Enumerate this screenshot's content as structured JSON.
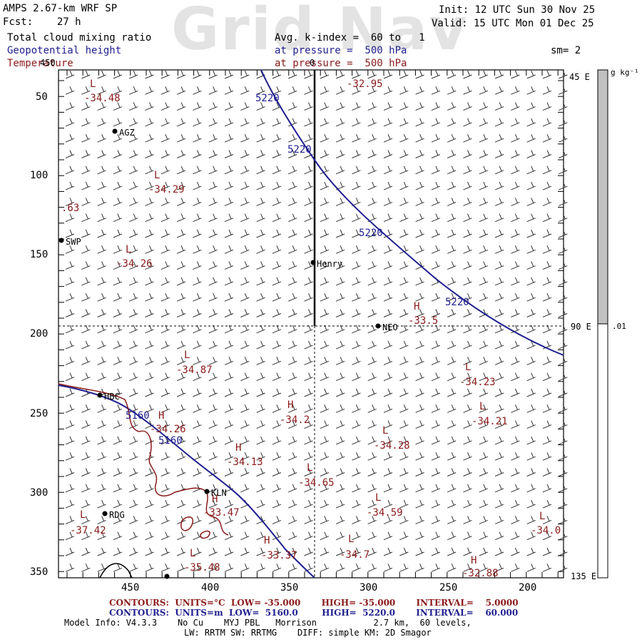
{
  "header": {
    "title": "AMPS 2.67-km WRF SP",
    "fcst": "Fcst:    27 h",
    "init": "Init: 12 UTC Sun 30 Nov 25",
    "valid": "Valid: 15 UTC Mon 01 Dec 25",
    "watermark": "Grid Nav",
    "field1": "Total cloud mixing ratio",
    "field2": "Geopotential height",
    "field3": "Temperature",
    "avg_line": "Avg. k-index =  60 to   1",
    "pressure1": "at pressure =  500 hPa",
    "pressure2": "at pressure =  500 hPa",
    "sm": "sm= 2",
    "axis_top_label": "450"
  },
  "colors": {
    "height_contour": "#1f1f8f",
    "temperature": "#8b1a1a",
    "coast": "#8b1a1a",
    "colorbar_fill": "#c0c0c0"
  },
  "axes": {
    "y_ticks": [
      "50",
      "100",
      "150",
      "200",
      "250",
      "300",
      "350"
    ],
    "x_ticks": [
      "450",
      "400",
      "350",
      "300",
      "250",
      "200"
    ],
    "top_center": "0"
  },
  "colorbar": {
    "unit": "g kg⁻¹",
    "top_label": "45 E",
    "mid_label": "90 E",
    "bottom_label": "135 E",
    "value_label": ".01",
    "fill_fraction": 0.5
  },
  "stations": [
    {
      "name": "AGZ"
    },
    {
      "name": "SWP"
    },
    {
      "name": "Henry"
    },
    {
      "name": "NEO"
    },
    {
      "name": "HBC"
    },
    {
      "name": "KLN"
    },
    {
      "name": "RDG"
    }
  ],
  "temp_labels": [
    {
      "mark": "L",
      "value": "-34.48"
    },
    {
      "mark": "L",
      "value": "-34.29"
    },
    {
      "mark": "",
      "value": ".63"
    },
    {
      "mark": "L",
      "value": "-34.26"
    },
    {
      "mark": "",
      "value": "-32.95"
    },
    {
      "mark": "H",
      "value": "-33.5"
    },
    {
      "mark": "L",
      "value": "-34.87"
    },
    {
      "mark": "L",
      "value": "-34.23"
    },
    {
      "mark": "L",
      "value": "-34.21"
    },
    {
      "mark": "H",
      "value": "-34.2"
    },
    {
      "mark": "L",
      "value": "-34.28"
    },
    {
      "mark": "H",
      "value": "-34.26"
    },
    {
      "mark": "H",
      "value": "-34.13"
    },
    {
      "mark": "L",
      "value": "-34.65"
    },
    {
      "mark": "H",
      "value": "-33.47"
    },
    {
      "mark": "L",
      "value": "-34.59"
    },
    {
      "mark": "L",
      "value": "-37.42"
    },
    {
      "mark": "L",
      "value": "-34.0"
    },
    {
      "mark": "H",
      "value": "-33.37"
    },
    {
      "mark": "L",
      "value": "-34.7"
    },
    {
      "mark": "L",
      "value": "-35.48"
    },
    {
      "mark": "H",
      "value": "-32.88"
    }
  ],
  "height_labels": [
    "5220",
    "5220",
    "5220",
    "5220",
    "5160",
    "5160"
  ],
  "footer": {
    "red_contours": "CONTOURS:  UNITS=°C  LOW= -35.000       HIGH= -35.000       INTERVAL=    5.0000",
    "blue_contours": "CONTOURS:  UNITS=m  LOW=  5160.0        HIGH=  5220.0       INTERVAL=    60.000",
    "model_info": "Model Info: V4.3.3    No Cu    MYJ PBL   Morrison           2.7 km,  60 levels,",
    "model_info2": "LW: RRTM SW: RRTMG    DIFF: simple KM: 2D Smagor"
  }
}
